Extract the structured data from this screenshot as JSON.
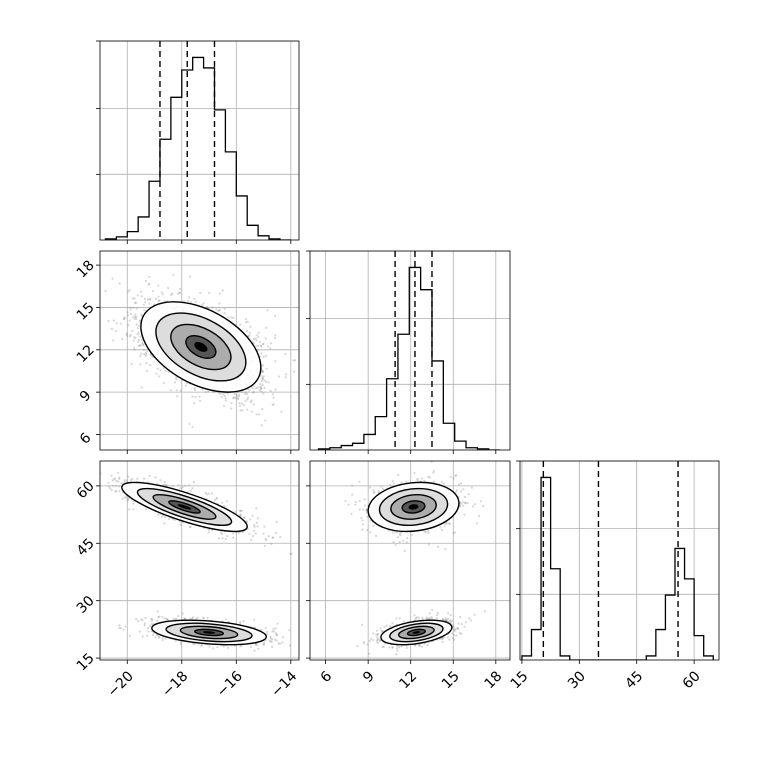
{
  "chart_data": {
    "type": "corner",
    "grid": true,
    "parameters": [
      {
        "name": "",
        "range": [
          -21.0,
          -13.7
        ],
        "ticks": [
          -20,
          -18,
          -16,
          -14
        ],
        "quantiles": [
          -18.8,
          -17.8,
          -16.8
        ]
      },
      {
        "name": "",
        "range": [
          4.9,
          19.0
        ],
        "ticks": [
          6,
          9,
          12,
          15,
          18
        ],
        "quantiles": [
          10.9,
          12.3,
          13.5
        ]
      },
      {
        "name": "",
        "range": [
          14.5,
          66.5
        ],
        "ticks": [
          15,
          30,
          45,
          60
        ],
        "quantiles": [
          20.6,
          35.0,
          55.8
        ]
      }
    ],
    "tick_labels": {
      "p0": [
        "−20",
        "−18",
        "−16",
        "−14"
      ],
      "p1": [
        "6",
        "9",
        "12",
        "15",
        "18"
      ],
      "p2": [
        "15",
        "30",
        "45",
        "60"
      ]
    },
    "histograms": [
      {
        "param": 0,
        "bin_edges": [
          -20.8,
          -20.4,
          -20.0,
          -19.6,
          -19.2,
          -18.8,
          -18.4,
          -18.0,
          -17.6,
          -17.2,
          -16.8,
          -16.4,
          -16.0,
          -15.6,
          -15.2,
          -14.8,
          -14.4,
          -14.0
        ],
        "counts": [
          0.5,
          1.5,
          4,
          11,
          28,
          48,
          68,
          81,
          87,
          82,
          62,
          42,
          21,
          7,
          2,
          0.5,
          0
        ]
      },
      {
        "param": 1,
        "bin_edges": [
          5.5,
          6.3,
          7.1,
          7.9,
          8.7,
          9.5,
          10.3,
          11.1,
          11.9,
          12.7,
          13.5,
          14.3,
          15.1,
          15.9,
          16.7,
          17.5,
          18.3
        ],
        "counts": [
          0.5,
          1,
          2,
          3,
          7,
          15,
          32,
          52,
          82,
          72,
          40,
          12,
          4,
          1,
          0.5,
          0
        ]
      },
      {
        "param": 2,
        "bin_edges": [
          15,
          17.5,
          20,
          22.5,
          25,
          27.5,
          30,
          32.5,
          35,
          37.5,
          40,
          42.5,
          45,
          47.5,
          50,
          52.5,
          55,
          57.5,
          60,
          62.5,
          65
        ],
        "counts": [
          2,
          15,
          90,
          45,
          2,
          0,
          0,
          0,
          0,
          0,
          0,
          0,
          0,
          2,
          15,
          32,
          55,
          40,
          12,
          2
        ]
      }
    ],
    "scatter_panels": [
      {
        "x_param": 0,
        "y_param": 1,
        "clusters": [
          {
            "center": [
              -17.3,
              12.2
            ],
            "sigma": [
              1.1,
              1.6
            ],
            "rho": -0.45,
            "n": 2200
          }
        ]
      },
      {
        "x_param": 0,
        "y_param": 2,
        "clusters": [
          {
            "center": [
              -17.9,
              54.5
            ],
            "sigma": [
              1.15,
              3.2
            ],
            "rho": -0.8,
            "n": 1100
          },
          {
            "center": [
              -17.0,
              21.7
            ],
            "sigma": [
              1.05,
              1.6
            ],
            "rho": -0.35,
            "n": 1100
          }
        ]
      },
      {
        "x_param": 1,
        "y_param": 2,
        "clusters": [
          {
            "center": [
              12.2,
              54.5
            ],
            "sigma": [
              1.6,
              3.2
            ],
            "rho": 0.15,
            "n": 1100
          },
          {
            "center": [
              12.4,
              21.7
            ],
            "sigma": [
              1.25,
              1.6
            ],
            "rho": 0.4,
            "n": 1100
          }
        ]
      }
    ],
    "colors": {
      "points": "#8c8c8c",
      "lines": "#000000",
      "grid": "#b0b0b0",
      "density_dark": "#000000",
      "density_light": "#ffffff"
    }
  }
}
